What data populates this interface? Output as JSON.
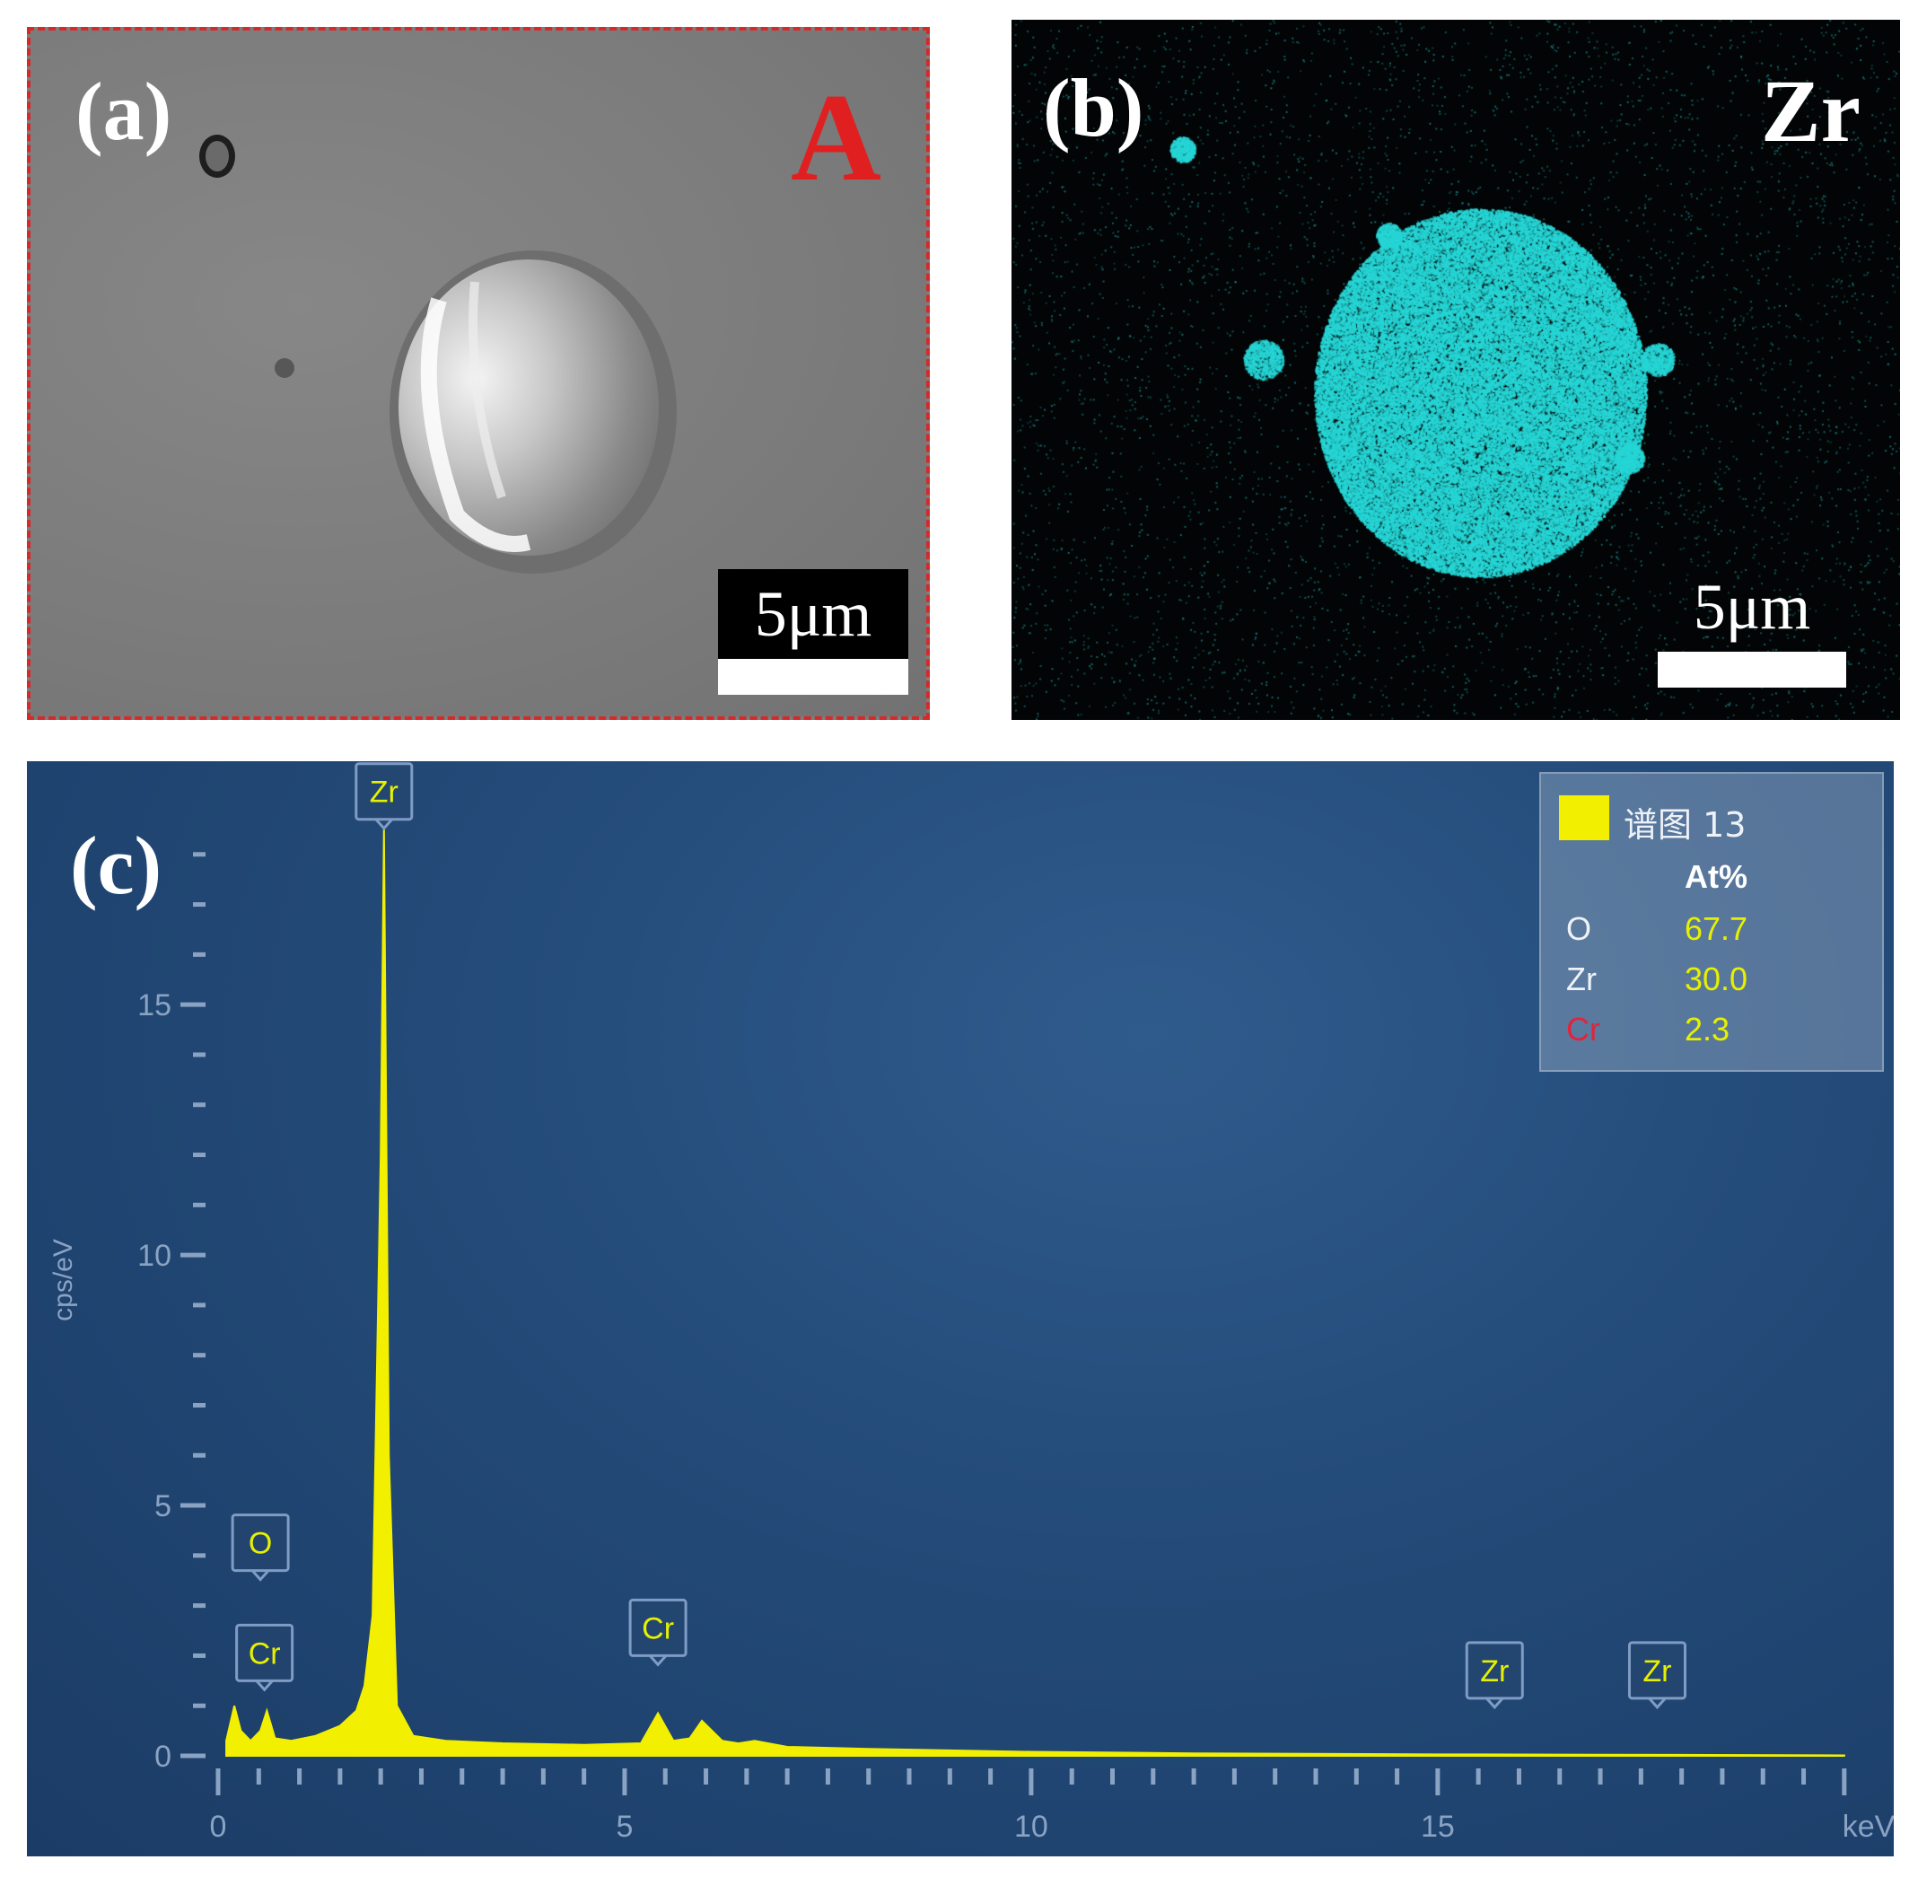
{
  "panel_a": {
    "letter": "(a)",
    "region_label": "A",
    "scalebar": "5μm"
  },
  "panel_b": {
    "letter": "(b)",
    "element": "Zr",
    "scalebar": "5μm"
  },
  "panel_c": {
    "letter": "(c)",
    "legend": {
      "name": "谱图 13",
      "header": "At%",
      "rows": [
        {
          "element": "O",
          "value": "67.7",
          "color": "#eef2f8"
        },
        {
          "element": "Zr",
          "value": "30.0",
          "color": "#eef2f8"
        },
        {
          "element": "Cr",
          "value": "2.3",
          "color": "#e0243c"
        }
      ]
    }
  },
  "colors": {
    "spectrum": "#f2f000",
    "zr_map": "#27d6d6",
    "region_border": "#d42a2a"
  },
  "chart_data": {
    "type": "area",
    "xlabel": "keV",
    "ylabel": "cps/eV",
    "xlim": [
      0,
      20.3
    ],
    "ylim": [
      0,
      19
    ],
    "x_ticks": [
      0,
      5,
      10,
      15
    ],
    "y_ticks": [
      0,
      5,
      10,
      15
    ],
    "series": [
      {
        "name": "谱图 13",
        "x": [
          0.1,
          0.2,
          0.28,
          0.4,
          0.52,
          0.6,
          0.7,
          0.9,
          1.2,
          1.5,
          1.7,
          1.8,
          1.9,
          2.0,
          2.04,
          2.1,
          2.2,
          2.4,
          2.8,
          3.5,
          4.5,
          5.2,
          5.41,
          5.6,
          5.8,
          5.95,
          6.2,
          6.4,
          6.6,
          7.0,
          8.0,
          10.0,
          12.0,
          15.0,
          18.0,
          20.0
        ],
        "y": [
          0.3,
          1.0,
          0.5,
          0.3,
          0.5,
          0.9,
          0.35,
          0.3,
          0.4,
          0.6,
          0.9,
          1.4,
          2.8,
          12.0,
          18.5,
          6.0,
          1.0,
          0.4,
          0.3,
          0.25,
          0.22,
          0.25,
          0.85,
          0.3,
          0.35,
          0.7,
          0.3,
          0.25,
          0.3,
          0.18,
          0.14,
          0.08,
          0.05,
          0.03,
          0.02,
          0.01
        ]
      }
    ],
    "peak_labels": [
      {
        "label": "Zr",
        "x": 2.04
      },
      {
        "label": "O",
        "x": 0.52
      },
      {
        "label": "Cr",
        "x": 0.57
      },
      {
        "label": "Cr",
        "x": 5.41
      },
      {
        "label": "Zr",
        "x": 15.7
      },
      {
        "label": "Zr",
        "x": 17.7
      }
    ]
  }
}
